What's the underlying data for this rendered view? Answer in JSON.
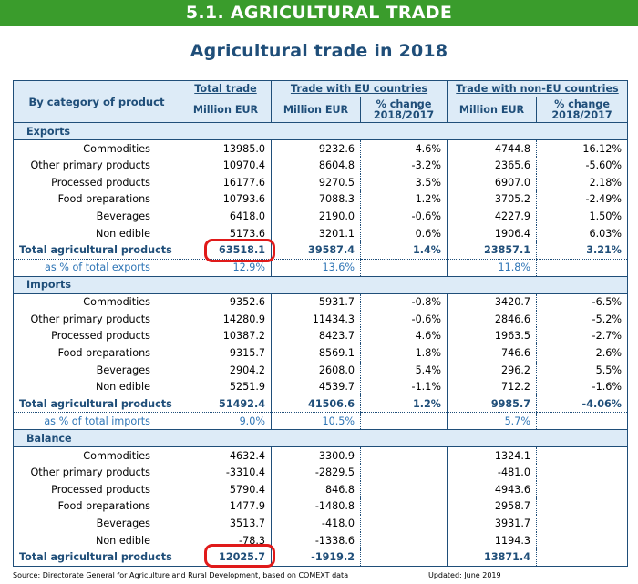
{
  "banner": "5.1. AGRICULTURAL TRADE",
  "title": "Agricultural trade in 2018",
  "header": {
    "category": "By category of product",
    "total_trade": "Total trade",
    "eu": "Trade with EU countries",
    "non_eu": "Trade with non-EU countries",
    "million_eur": "Million EUR",
    "pct_change_1": "% change",
    "pct_change_2": "2018/2017"
  },
  "sections": [
    {
      "name": "Exports",
      "rows": [
        {
          "label": "Commodities",
          "total": "13985.0",
          "eu": "9232.6",
          "eu_pct": "4.6%",
          "non_eu": "4744.8",
          "non_eu_pct": "16.12%"
        },
        {
          "label": "Other primary products",
          "total": "10970.4",
          "eu": "8604.8",
          "eu_pct": "-3.2%",
          "non_eu": "2365.6",
          "non_eu_pct": "-5.60%"
        },
        {
          "label": "Processed products",
          "total": "16177.6",
          "eu": "9270.5",
          "eu_pct": "3.5%",
          "non_eu": "6907.0",
          "non_eu_pct": "2.18%"
        },
        {
          "label": "Food preparations",
          "total": "10793.6",
          "eu": "7088.3",
          "eu_pct": "1.2%",
          "non_eu": "3705.2",
          "non_eu_pct": "-2.49%"
        },
        {
          "label": "Beverages",
          "total": "6418.0",
          "eu": "2190.0",
          "eu_pct": "-0.6%",
          "non_eu": "4227.9",
          "non_eu_pct": "1.50%"
        },
        {
          "label": "Non edible",
          "total": "5173.6",
          "eu": "3201.1",
          "eu_pct": "0.6%",
          "non_eu": "1906.4",
          "non_eu_pct": "6.03%"
        }
      ],
      "total": {
        "label": "Total agricultural products",
        "total": "63518.1",
        "eu": "39587.4",
        "eu_pct": "1.4%",
        "non_eu": "23857.1",
        "non_eu_pct": "3.21%"
      },
      "pct": {
        "label": "as % of total exports",
        "total": "12.9%",
        "eu": "13.6%",
        "non_eu": "11.8%"
      }
    },
    {
      "name": "Imports",
      "rows": [
        {
          "label": "Commodities",
          "total": "9352.6",
          "eu": "5931.7",
          "eu_pct": "-0.8%",
          "non_eu": "3420.7",
          "non_eu_pct": "-6.5%"
        },
        {
          "label": "Other primary products",
          "total": "14280.9",
          "eu": "11434.3",
          "eu_pct": "-0.6%",
          "non_eu": "2846.6",
          "non_eu_pct": "-5.2%"
        },
        {
          "label": "Processed products",
          "total": "10387.2",
          "eu": "8423.7",
          "eu_pct": "4.6%",
          "non_eu": "1963.5",
          "non_eu_pct": "-2.7%"
        },
        {
          "label": "Food preparations",
          "total": "9315.7",
          "eu": "8569.1",
          "eu_pct": "1.8%",
          "non_eu": "746.6",
          "non_eu_pct": "2.6%"
        },
        {
          "label": "Beverages",
          "total": "2904.2",
          "eu": "2608.0",
          "eu_pct": "5.4%",
          "non_eu": "296.2",
          "non_eu_pct": "5.5%"
        },
        {
          "label": "Non edible",
          "total": "5251.9",
          "eu": "4539.7",
          "eu_pct": "-1.1%",
          "non_eu": "712.2",
          "non_eu_pct": "-1.6%"
        }
      ],
      "total": {
        "label": "Total agricultural products",
        "total": "51492.4",
        "eu": "41506.6",
        "eu_pct": "1.2%",
        "non_eu": "9985.7",
        "non_eu_pct": "-4.06%"
      },
      "pct": {
        "label": "as % of total imports",
        "total": "9.0%",
        "eu": "10.5%",
        "non_eu": "5.7%"
      }
    },
    {
      "name": "Balance",
      "rows": [
        {
          "label": "Commodities",
          "total": "4632.4",
          "eu": "3300.9",
          "eu_pct": "",
          "non_eu": "1324.1",
          "non_eu_pct": ""
        },
        {
          "label": "Other primary products",
          "total": "-3310.4",
          "eu": "-2829.5",
          "eu_pct": "",
          "non_eu": "-481.0",
          "non_eu_pct": ""
        },
        {
          "label": "Processed products",
          "total": "5790.4",
          "eu": "846.8",
          "eu_pct": "",
          "non_eu": "4943.6",
          "non_eu_pct": ""
        },
        {
          "label": "Food preparations",
          "total": "1477.9",
          "eu": "-1480.8",
          "eu_pct": "",
          "non_eu": "2958.7",
          "non_eu_pct": ""
        },
        {
          "label": "Beverages",
          "total": "3513.7",
          "eu": "-418.0",
          "eu_pct": "",
          "non_eu": "3931.7",
          "non_eu_pct": ""
        },
        {
          "label": "Non edible",
          "total": "-78.3",
          "eu": "-1338.6",
          "eu_pct": "",
          "non_eu": "1194.3",
          "non_eu_pct": ""
        }
      ],
      "total": {
        "label": "Total agricultural products",
        "total": "12025.7",
        "eu": "-1919.2",
        "eu_pct": "",
        "non_eu": "13871.4",
        "non_eu_pct": ""
      }
    }
  ],
  "footer": {
    "source": "Source: Directorate General for Agriculture and Rural Development, based on COMEXT data",
    "updated": "Updated: June 2019"
  },
  "colors": {
    "banner": "#3a9c2c",
    "header_fill": "#ddebf7",
    "text_navy": "#1f4e79",
    "pct_blue": "#2e75b6",
    "highlight_red": "#e01a1a"
  }
}
